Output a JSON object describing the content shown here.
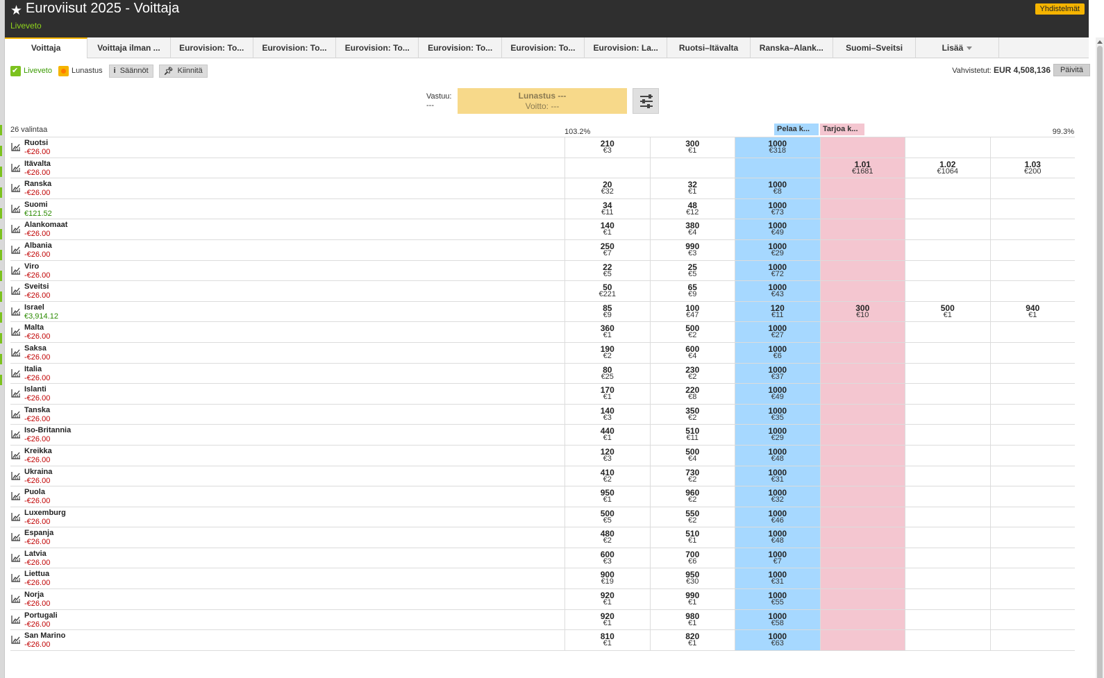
{
  "header": {
    "title": "Euroviisut 2025 - Voittaja",
    "subtitle": "Liveveto",
    "merge_label": "Yhdistelmät"
  },
  "tabs": [
    {
      "label": "Voittaja",
      "active": true
    },
    {
      "label": "Voittaja ilman ..."
    },
    {
      "label": "Eurovision: To..."
    },
    {
      "label": "Eurovision: To..."
    },
    {
      "label": "Eurovision: To..."
    },
    {
      "label": "Eurovision: To..."
    },
    {
      "label": "Eurovision: To..."
    },
    {
      "label": "Eurovision: La..."
    },
    {
      "label": "Ruotsi–Itävalta"
    },
    {
      "label": "Ranska–Alank..."
    },
    {
      "label": "Suomi–Sveitsi"
    },
    {
      "label": "Lisää"
    }
  ],
  "toolbar": {
    "live_label": "Liveveto",
    "cashout_label": "Lunastus",
    "rules_label": "Säännöt",
    "pin_label": "Kiinnitä"
  },
  "matched": {
    "label": "Vahvistetut:",
    "amount": "EUR 4,508,136",
    "refresh_label": "Päivitä"
  },
  "liability": {
    "label": "Vastuu:",
    "value": "---"
  },
  "cashout_box": {
    "line1": "Lunastus ---",
    "line2": "Voitto: ---"
  },
  "market": {
    "selections": "26 valintaa",
    "back_overround": "103.2%",
    "lay_overround": "99.3%",
    "back_header": "Pelaa k...",
    "lay_header": "Tarjoa k..."
  },
  "colors": {
    "header_bg": "#2f2f2f",
    "accent": "#f5b400",
    "live_green": "#7cc21e",
    "back": "#a6d8ff",
    "lay": "#f4c6d0",
    "loss": "#c00000",
    "profit": "#2b8a00"
  },
  "runners": [
    {
      "name": "Ruotsi",
      "pl": "-€26.00",
      "positive": false,
      "cells": [
        [
          "210",
          "€3"
        ],
        [
          "300",
          "€1"
        ],
        [
          "1000",
          "€318"
        ],
        [
          "",
          ""
        ],
        [
          "",
          ""
        ],
        [
          "",
          ""
        ]
      ]
    },
    {
      "name": "Itävalta",
      "pl": "-€26.00",
      "positive": false,
      "cells": [
        [
          "",
          ""
        ],
        [
          "",
          ""
        ],
        [
          "",
          ""
        ],
        [
          "1.01",
          "€1681"
        ],
        [
          "1.02",
          "€1064"
        ],
        [
          "1.03",
          "€200"
        ]
      ]
    },
    {
      "name": "Ranska",
      "pl": "-€26.00",
      "positive": false,
      "cells": [
        [
          "20",
          "€32"
        ],
        [
          "32",
          "€1"
        ],
        [
          "1000",
          "€8"
        ],
        [
          "",
          ""
        ],
        [
          "",
          ""
        ],
        [
          "",
          ""
        ]
      ]
    },
    {
      "name": "Suomi",
      "pl": "€121.52",
      "positive": true,
      "cells": [
        [
          "34",
          "€11"
        ],
        [
          "48",
          "€12"
        ],
        [
          "1000",
          "€73"
        ],
        [
          "",
          ""
        ],
        [
          "",
          ""
        ],
        [
          "",
          ""
        ]
      ]
    },
    {
      "name": "Alankomaat",
      "pl": "-€26.00",
      "positive": false,
      "cells": [
        [
          "140",
          "€1"
        ],
        [
          "380",
          "€4"
        ],
        [
          "1000",
          "€49"
        ],
        [
          "",
          ""
        ],
        [
          "",
          ""
        ],
        [
          "",
          ""
        ]
      ]
    },
    {
      "name": "Albania",
      "pl": "-€26.00",
      "positive": false,
      "cells": [
        [
          "250",
          "€7"
        ],
        [
          "990",
          "€3"
        ],
        [
          "1000",
          "€29"
        ],
        [
          "",
          ""
        ],
        [
          "",
          ""
        ],
        [
          "",
          ""
        ]
      ]
    },
    {
      "name": "Viro",
      "pl": "-€26.00",
      "positive": false,
      "cells": [
        [
          "22",
          "€5"
        ],
        [
          "25",
          "€5"
        ],
        [
          "1000",
          "€72"
        ],
        [
          "",
          ""
        ],
        [
          "",
          ""
        ],
        [
          "",
          ""
        ]
      ]
    },
    {
      "name": "Sveitsi",
      "pl": "-€26.00",
      "positive": false,
      "cells": [
        [
          "50",
          "€221"
        ],
        [
          "65",
          "€9"
        ],
        [
          "1000",
          "€43"
        ],
        [
          "",
          ""
        ],
        [
          "",
          ""
        ],
        [
          "",
          ""
        ]
      ]
    },
    {
      "name": "Israel",
      "pl": "€3,914.12",
      "positive": true,
      "cells": [
        [
          "85",
          "€9"
        ],
        [
          "100",
          "€47"
        ],
        [
          "120",
          "€11"
        ],
        [
          "300",
          "€10"
        ],
        [
          "500",
          "€1"
        ],
        [
          "940",
          "€1"
        ]
      ]
    },
    {
      "name": "Malta",
      "pl": "-€26.00",
      "positive": false,
      "cells": [
        [
          "360",
          "€1"
        ],
        [
          "500",
          "€2"
        ],
        [
          "1000",
          "€27"
        ],
        [
          "",
          ""
        ],
        [
          "",
          ""
        ],
        [
          "",
          ""
        ]
      ]
    },
    {
      "name": "Saksa",
      "pl": "-€26.00",
      "positive": false,
      "cells": [
        [
          "190",
          "€2"
        ],
        [
          "600",
          "€4"
        ],
        [
          "1000",
          "€6"
        ],
        [
          "",
          ""
        ],
        [
          "",
          ""
        ],
        [
          "",
          ""
        ]
      ]
    },
    {
      "name": "Italia",
      "pl": "-€26.00",
      "positive": false,
      "cells": [
        [
          "80",
          "€25"
        ],
        [
          "230",
          "€2"
        ],
        [
          "1000",
          "€37"
        ],
        [
          "",
          ""
        ],
        [
          "",
          ""
        ],
        [
          "",
          ""
        ]
      ]
    },
    {
      "name": "Islanti",
      "pl": "-€26.00",
      "positive": false,
      "cells": [
        [
          "170",
          "€1"
        ],
        [
          "220",
          "€8"
        ],
        [
          "1000",
          "€49"
        ],
        [
          "",
          ""
        ],
        [
          "",
          ""
        ],
        [
          "",
          ""
        ]
      ]
    },
    {
      "name": "Tanska",
      "pl": "-€26.00",
      "positive": false,
      "cells": [
        [
          "140",
          "€3"
        ],
        [
          "350",
          "€2"
        ],
        [
          "1000",
          "€35"
        ],
        [
          "",
          ""
        ],
        [
          "",
          ""
        ],
        [
          "",
          ""
        ]
      ]
    },
    {
      "name": "Iso-Britannia",
      "pl": "-€26.00",
      "positive": false,
      "cells": [
        [
          "440",
          "€1"
        ],
        [
          "510",
          "€11"
        ],
        [
          "1000",
          "€29"
        ],
        [
          "",
          ""
        ],
        [
          "",
          ""
        ],
        [
          "",
          ""
        ]
      ]
    },
    {
      "name": "Kreikka",
      "pl": "-€26.00",
      "positive": false,
      "cells": [
        [
          "120",
          "€3"
        ],
        [
          "500",
          "€4"
        ],
        [
          "1000",
          "€48"
        ],
        [
          "",
          ""
        ],
        [
          "",
          ""
        ],
        [
          "",
          ""
        ]
      ]
    },
    {
      "name": "Ukraina",
      "pl": "-€26.00",
      "positive": false,
      "cells": [
        [
          "410",
          "€2"
        ],
        [
          "730",
          "€2"
        ],
        [
          "1000",
          "€31"
        ],
        [
          "",
          ""
        ],
        [
          "",
          ""
        ],
        [
          "",
          ""
        ]
      ]
    },
    {
      "name": "Puola",
      "pl": "-€26.00",
      "positive": false,
      "cells": [
        [
          "950",
          "€1"
        ],
        [
          "960",
          "€2"
        ],
        [
          "1000",
          "€32"
        ],
        [
          "",
          ""
        ],
        [
          "",
          ""
        ],
        [
          "",
          ""
        ]
      ]
    },
    {
      "name": "Luxemburg",
      "pl": "-€26.00",
      "positive": false,
      "cells": [
        [
          "500",
          "€5"
        ],
        [
          "550",
          "€2"
        ],
        [
          "1000",
          "€46"
        ],
        [
          "",
          ""
        ],
        [
          "",
          ""
        ],
        [
          "",
          ""
        ]
      ]
    },
    {
      "name": "Espanja",
      "pl": "-€26.00",
      "positive": false,
      "cells": [
        [
          "480",
          "€2"
        ],
        [
          "510",
          "€1"
        ],
        [
          "1000",
          "€48"
        ],
        [
          "",
          ""
        ],
        [
          "",
          ""
        ],
        [
          "",
          ""
        ]
      ]
    },
    {
      "name": "Latvia",
      "pl": "-€26.00",
      "positive": false,
      "cells": [
        [
          "600",
          "€3"
        ],
        [
          "700",
          "€6"
        ],
        [
          "1000",
          "€7"
        ],
        [
          "",
          ""
        ],
        [
          "",
          ""
        ],
        [
          "",
          ""
        ]
      ]
    },
    {
      "name": "Liettua",
      "pl": "-€26.00",
      "positive": false,
      "cells": [
        [
          "900",
          "€19"
        ],
        [
          "950",
          "€30"
        ],
        [
          "1000",
          "€31"
        ],
        [
          "",
          ""
        ],
        [
          "",
          ""
        ],
        [
          "",
          ""
        ]
      ]
    },
    {
      "name": "Norja",
      "pl": "-€26.00",
      "positive": false,
      "cells": [
        [
          "920",
          "€1"
        ],
        [
          "990",
          "€1"
        ],
        [
          "1000",
          "€55"
        ],
        [
          "",
          ""
        ],
        [
          "",
          ""
        ],
        [
          "",
          ""
        ]
      ]
    },
    {
      "name": "Portugali",
      "pl": "-€26.00",
      "positive": false,
      "cells": [
        [
          "920",
          "€1"
        ],
        [
          "980",
          "€1"
        ],
        [
          "1000",
          "€58"
        ],
        [
          "",
          ""
        ],
        [
          "",
          ""
        ],
        [
          "",
          ""
        ]
      ]
    },
    {
      "name": "San Marino",
      "pl": "-€26.00",
      "positive": false,
      "cells": [
        [
          "810",
          "€1"
        ],
        [
          "820",
          "€1"
        ],
        [
          "1000",
          "€63"
        ],
        [
          "",
          ""
        ],
        [
          "",
          ""
        ],
        [
          "",
          ""
        ]
      ]
    }
  ]
}
